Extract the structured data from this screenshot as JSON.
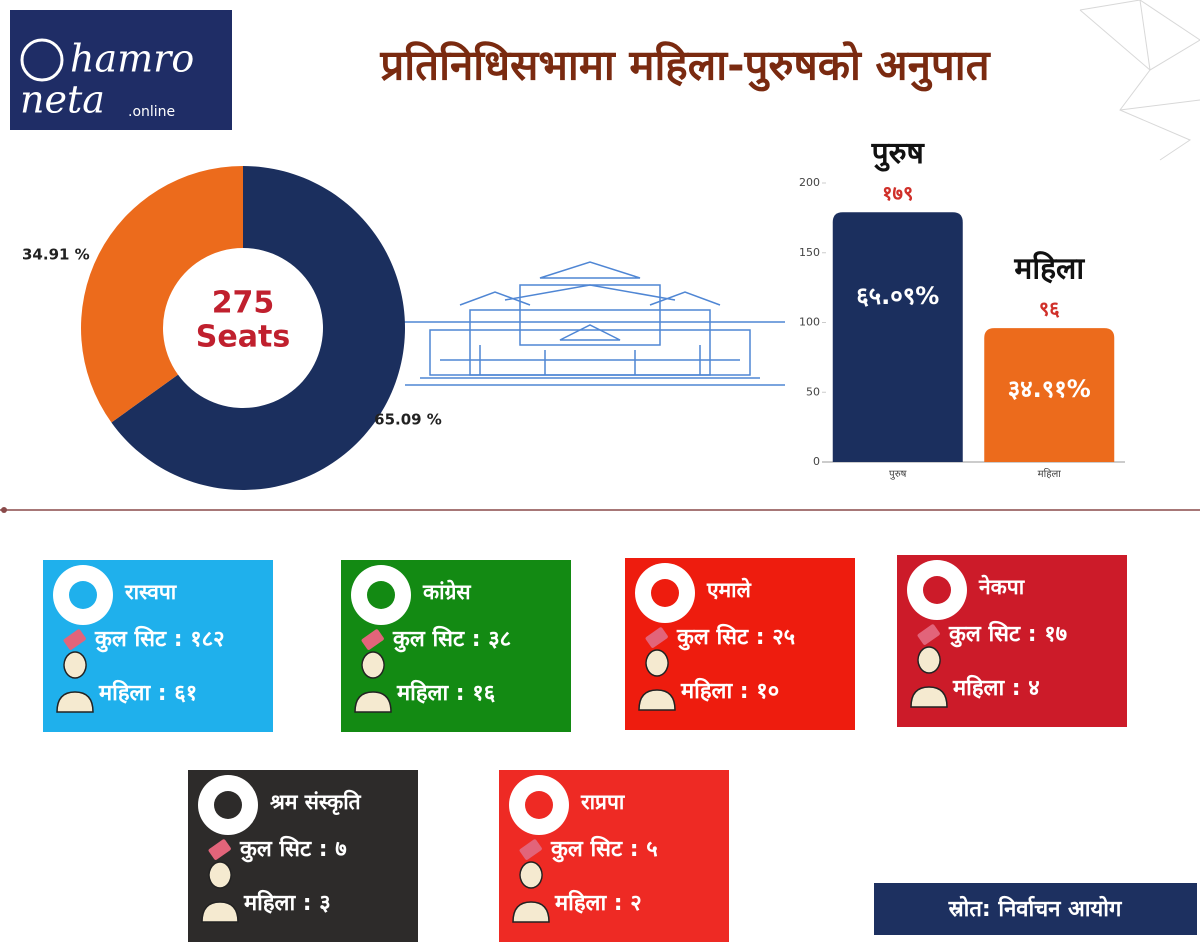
{
  "header": {
    "title": "प्रतिनिधिसभामा महिला-पुरुषको अनुपात",
    "logo": [
      "hamro",
      "neta",
      ".online"
    ]
  },
  "chart_data": [
    {
      "type": "pie",
      "donut": true,
      "values": [
        65.09,
        34.91
      ],
      "value_labels": [
        "65.09 %",
        "34.91 %"
      ],
      "colors": [
        "#1b2f5e",
        "#ec6b1c"
      ],
      "center_value": 275,
      "center_label": "Seats"
    },
    {
      "type": "bar",
      "categories": [
        "पुरुष",
        "महिला"
      ],
      "values": [
        179,
        96
      ],
      "value_labels": [
        "१७९",
        "९६"
      ],
      "inner_labels": [
        "६५.०९%",
        "३४.९१%"
      ],
      "colors": [
        "#1b2f5e",
        "#ec6b1c"
      ],
      "ylim": [
        0,
        200
      ],
      "yticks": [
        0,
        50,
        100,
        150,
        200
      ]
    }
  ],
  "parties": [
    {
      "name": "रास्वपा",
      "color": "#1fb0ec",
      "seats_text": "कुल सिट : १८२",
      "women_text": "महिला : ६१"
    },
    {
      "name": "कांग्रेस",
      "color": "#138a13",
      "seats_text": "कुल सिट : ३८",
      "women_text": "महिला : १६"
    },
    {
      "name": "एमाले",
      "color": "#ee1c0e",
      "seats_text": "कुल सिट : २५",
      "women_text": "महिला : १०"
    },
    {
      "name": "नेकपा",
      "color": "#cc1b29",
      "seats_text": "कुल सिट : १७",
      "women_text": "महिला : ४"
    },
    {
      "name": "श्रम संस्कृति",
      "color": "#2d2b2a",
      "seats_text": "कुल सिट : ७",
      "women_text": "महिला : ३"
    },
    {
      "name": "राप्रपा",
      "color": "#ee2a24",
      "seats_text": "कुल सिट : ५",
      "women_text": "महिला : २"
    }
  ],
  "source": "स्रोत: निर्वाचन आयोग"
}
